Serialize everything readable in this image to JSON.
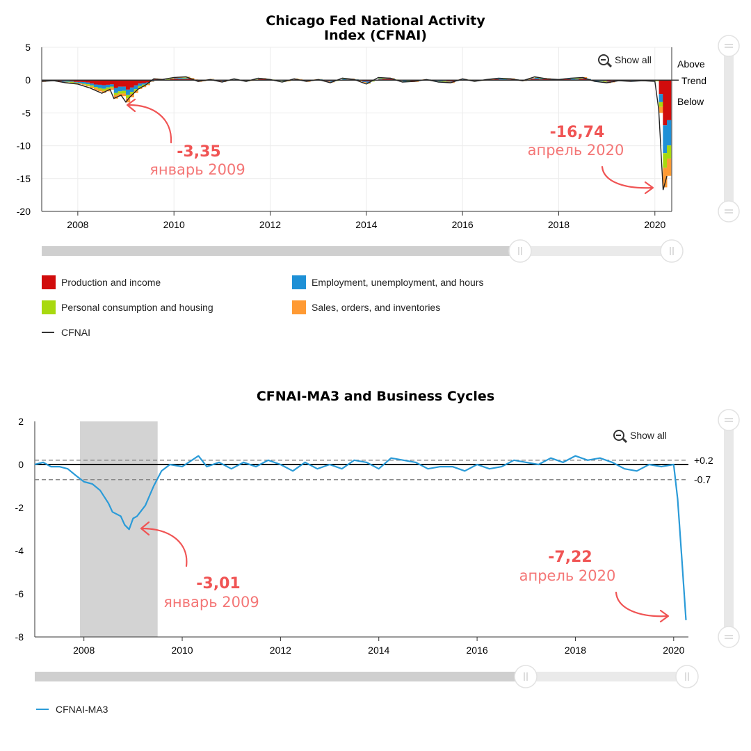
{
  "chart_data": [
    {
      "type": "bar",
      "title": "Chicago Fed National Activity Index (CFNAI)",
      "title_lines": [
        "Chicago Fed National Activity",
        "Index (CFNAI)"
      ],
      "ylim": [
        -20,
        5
      ],
      "yticks": [
        "5",
        "0",
        "-5",
        "-10",
        "-15",
        "-20"
      ],
      "yticks_values": [
        5,
        0,
        -5,
        -10,
        -15,
        -20
      ],
      "x_range": [
        2007.25,
        2020.35
      ],
      "xticks": [
        "2008",
        "2010",
        "2012",
        "2014",
        "2016",
        "2018",
        "2020"
      ],
      "xticks_values": [
        2008,
        2010,
        2012,
        2014,
        2016,
        2018,
        2020
      ],
      "right_labels": [
        "Above",
        "Trend",
        "Below"
      ],
      "show_all_label": "Show all",
      "legend": [
        {
          "name": "Production and income",
          "color": "#d10c0c"
        },
        {
          "name": "Employment, unemployment, and hours",
          "color": "#1e90d6"
        },
        {
          "name": "Personal consumption and housing",
          "color": "#a8d90f"
        },
        {
          "name": "Sales, orders, and inventories",
          "color": "#ff9a33"
        },
        {
          "name": "CFNAI",
          "color": "#333333"
        }
      ],
      "series": [
        {
          "name": "CFNAI",
          "x": [
            2007.25,
            2007.5,
            2007.75,
            2008.0,
            2008.25,
            2008.5,
            2008.67,
            2008.75,
            2008.9,
            2009.0,
            2009.08,
            2009.25,
            2009.42,
            2009.58,
            2009.75,
            2010.0,
            2010.25,
            2010.5,
            2010.75,
            2011.0,
            2011.25,
            2011.5,
            2011.75,
            2012.0,
            2012.25,
            2012.5,
            2012.75,
            2013.0,
            2013.25,
            2013.5,
            2013.75,
            2014.0,
            2014.25,
            2014.5,
            2014.75,
            2015.0,
            2015.25,
            2015.5,
            2015.75,
            2016.0,
            2016.25,
            2016.5,
            2016.75,
            2017.0,
            2017.25,
            2017.5,
            2017.75,
            2018.0,
            2018.25,
            2018.5,
            2018.75,
            2019.0,
            2019.25,
            2019.5,
            2019.75,
            2020.0,
            2020.08,
            2020.17,
            2020.25
          ],
          "values": [
            -0.2,
            -0.1,
            -0.4,
            -0.6,
            -1.2,
            -2.0,
            -1.4,
            -2.8,
            -2.3,
            -3.35,
            -2.6,
            -1.4,
            -0.7,
            0.2,
            0.1,
            0.4,
            0.5,
            -0.2,
            0.1,
            -0.3,
            0.2,
            -0.2,
            0.3,
            0.1,
            -0.3,
            0.2,
            -0.2,
            0.1,
            -0.4,
            0.3,
            0.1,
            -0.6,
            0.4,
            0.3,
            -0.3,
            -0.2,
            0.1,
            -0.3,
            -0.4,
            0.2,
            -0.2,
            0.1,
            0.3,
            0.2,
            -0.1,
            0.5,
            0.2,
            0.1,
            0.3,
            0.4,
            -0.2,
            -0.4,
            -0.1,
            -0.2,
            -0.1,
            -0.2,
            -4.5,
            -16.74,
            -14.6
          ]
        }
      ],
      "annotations": [
        {
          "value_label": "-3,35",
          "date_label": "январь 2009"
        },
        {
          "value_label": "-16,74",
          "date_label": "апрель 2020"
        }
      ]
    },
    {
      "type": "line",
      "title": "CFNAI-MA3 and Business Cycles",
      "ylim": [
        -8,
        2
      ],
      "yticks": [
        "2",
        "0",
        "-2",
        "-4",
        "-6",
        "-8"
      ],
      "yticks_values": [
        2,
        0,
        -2,
        -4,
        -6,
        -8
      ],
      "x_range": [
        2007.0,
        2020.3
      ],
      "xticks": [
        "2008",
        "2010",
        "2012",
        "2014",
        "2016",
        "2018",
        "2020"
      ],
      "xticks_values": [
        2008,
        2010,
        2012,
        2014,
        2016,
        2018,
        2020
      ],
      "recession": [
        2007.92,
        2009.5
      ],
      "reference_lines": [
        {
          "label": "+0.2",
          "value": 0.2
        },
        {
          "label": "-0.7",
          "value": -0.7
        }
      ],
      "show_all_label": "Show all",
      "legend": [
        {
          "name": "CFNAI-MA3",
          "color": "#2b9bd8"
        }
      ],
      "series": [
        {
          "name": "CFNAI-MA3",
          "x": [
            2007.0,
            2007.17,
            2007.33,
            2007.5,
            2007.67,
            2007.83,
            2008.0,
            2008.17,
            2008.33,
            2008.5,
            2008.58,
            2008.75,
            2008.83,
            2008.92,
            2009.0,
            2009.08,
            2009.25,
            2009.42,
            2009.58,
            2009.75,
            2010.0,
            2010.33,
            2010.5,
            2010.75,
            2011.0,
            2011.25,
            2011.5,
            2011.75,
            2012.0,
            2012.25,
            2012.5,
            2012.75,
            2013.0,
            2013.25,
            2013.5,
            2013.75,
            2014.0,
            2014.25,
            2014.5,
            2014.75,
            2015.0,
            2015.25,
            2015.5,
            2015.75,
            2016.0,
            2016.25,
            2016.5,
            2016.75,
            2017.0,
            2017.25,
            2017.5,
            2017.75,
            2018.0,
            2018.25,
            2018.5,
            2018.75,
            2019.0,
            2019.25,
            2019.5,
            2019.75,
            2020.0,
            2020.08,
            2020.17,
            2020.25
          ],
          "values": [
            0.0,
            0.1,
            -0.1,
            -0.1,
            -0.2,
            -0.5,
            -0.8,
            -0.9,
            -1.2,
            -1.8,
            -2.2,
            -2.4,
            -2.8,
            -3.01,
            -2.5,
            -2.4,
            -1.9,
            -1.0,
            -0.3,
            0.0,
            -0.1,
            0.4,
            -0.1,
            0.1,
            -0.2,
            0.1,
            -0.1,
            0.2,
            0.0,
            -0.3,
            0.1,
            -0.2,
            0.0,
            -0.2,
            0.2,
            0.1,
            -0.2,
            0.3,
            0.2,
            0.1,
            -0.2,
            -0.1,
            -0.1,
            -0.3,
            0.0,
            -0.2,
            -0.1,
            0.2,
            0.1,
            0.0,
            0.3,
            0.1,
            0.4,
            0.2,
            0.3,
            0.1,
            -0.2,
            -0.3,
            0.0,
            -0.1,
            0.0,
            -1.6,
            -4.5,
            -7.22
          ]
        }
      ],
      "annotations": [
        {
          "value_label": "-3,01",
          "date_label": "январь 2009"
        },
        {
          "value_label": "-7,22",
          "date_label": "апрель 2020"
        }
      ]
    }
  ],
  "colors": {
    "accent": "#f05454",
    "ma3": "#2b9bd8",
    "recession": "#d3d3d3"
  }
}
